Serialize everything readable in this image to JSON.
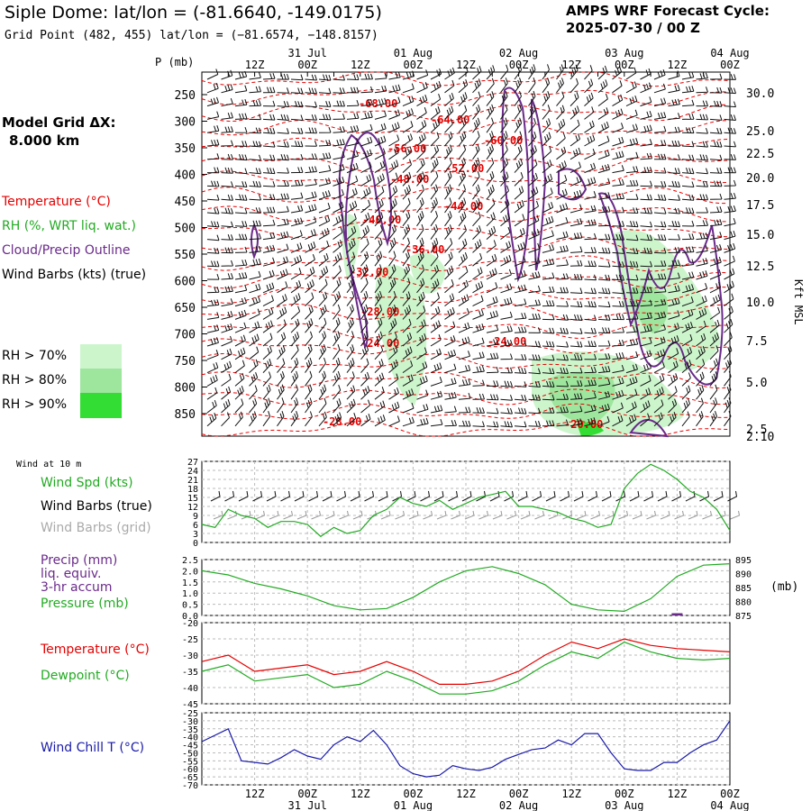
{
  "header": {
    "title": "Siple Dome:  lat/lon = (-81.6640, -149.0175)",
    "subtitle": "Grid Point (482, 455) lat/lon = (−81.6574, −148.8157)",
    "cycle_line1": "AMPS WRF Forecast Cycle:",
    "cycle_line2": "2025-07-30 / 00  Z"
  },
  "left_legend": {
    "grid_dx_label": "Model Grid ΔX:",
    "grid_dx_value": "8.000 km",
    "temperature": "Temperature (°C)",
    "rh": "RH (%, WRT liq. wat.)",
    "cloud": "Cloud/Precip Outline",
    "wind_barbs": "Wind Barbs (kts) (true)",
    "rh70": "RH > 70%",
    "rh80": "RH > 80%",
    "rh90": "RH > 90%",
    "wind10m": "Wind at 10 m",
    "wind_spd": "Wind Spd (kts)",
    "wind_barbs_true": "Wind Barbs (true)",
    "wind_barbs_grid": "Wind Barbs (grid)",
    "precip": "Precip (mm)",
    "liq": "liq. equiv.",
    "accum": "3-hr accum",
    "pressure": "Pressure (mb)",
    "temp2": "Temperature (°C)",
    "dewpoint": "Dewpoint (°C)",
    "windchill": "Wind Chill T (°C)"
  },
  "colors": {
    "temperature": "#e60000",
    "rh": "#22aa22",
    "cloud": "#6a2a8a",
    "wind": "#000000",
    "wind_grid": "#999999",
    "windchill": "#1a1aaa",
    "rh70": "#ccf5cc",
    "rh80": "#9ee59e",
    "rh90": "#33dd33"
  },
  "time_axis": {
    "top_labels": [
      "12Z",
      "00Z",
      "12Z",
      "00Z",
      "12Z",
      "00Z",
      "12Z",
      "00Z",
      "12Z",
      "00Z"
    ],
    "top_dates": [
      "31 Jul",
      "01 Aug",
      "02 Aug",
      "03 Aug",
      "04 Aug"
    ],
    "bottom_labels": [
      "12Z",
      "00Z",
      "12Z",
      "00Z",
      "12Z",
      "00Z",
      "12Z",
      "00Z",
      "12Z",
      "00Z"
    ],
    "bottom_dates": [
      "31 Jul",
      "01 Aug",
      "02 Aug",
      "03 Aug",
      "04 Aug"
    ]
  },
  "chart_data": [
    {
      "type": "line",
      "title": "",
      "ylabel": "P (mb)",
      "y2label": "Kft MSL",
      "y_ticks": [
        250,
        300,
        350,
        400,
        450,
        500,
        550,
        600,
        650,
        700,
        750,
        800,
        850
      ],
      "y2_ticks": [
        "30.0",
        "25.0",
        "22.5",
        "20.0",
        "17.5",
        "15.0",
        "12.5",
        "10.0",
        "7.5",
        "5.0",
        "2.5",
        "2.10"
      ],
      "contour_labels": [
        "-68.00",
        "-64.00",
        "-56.00",
        "-60.00",
        "-52.00",
        "-48.00",
        "-44.00",
        "-40.00",
        "-36.00",
        "-32.00",
        "-28.00",
        "-24.00",
        "-24.00",
        "-28.00",
        "-20.00"
      ]
    },
    {
      "type": "line",
      "title": "",
      "ylabel": "Wind Spd (kts)",
      "ylim": [
        0,
        27
      ],
      "y_ticks": [
        0,
        3,
        6,
        9,
        12,
        15,
        18,
        21,
        24,
        27
      ],
      "x_hours": [
        0,
        3,
        6,
        9,
        12,
        15,
        18,
        21,
        24,
        27,
        30,
        33,
        36,
        39,
        42,
        45,
        48,
        51,
        54,
        57,
        60,
        63,
        66,
        69,
        72,
        75,
        78,
        81,
        84,
        87,
        90,
        93,
        96,
        99,
        102,
        105,
        108,
        111,
        114,
        117,
        120
      ],
      "series": [
        {
          "values": [
            6,
            5,
            11,
            9,
            8,
            5,
            7,
            7,
            6,
            2,
            5,
            3,
            4,
            9,
            11,
            15,
            13,
            12,
            14,
            11,
            13,
            15,
            16,
            17,
            12,
            12,
            11,
            10,
            8,
            7,
            5,
            6,
            18,
            23,
            26,
            24,
            21,
            17,
            15,
            11,
            4
          ]
        }
      ]
    },
    {
      "type": "line",
      "title": "",
      "ylabel": "Precip (mm)",
      "ylim": [
        0,
        2.5
      ],
      "y_ticks": [
        "0.0",
        "0.5",
        "1.0",
        "1.5",
        "2.0",
        "2.5"
      ],
      "y2_ticks": [
        "875",
        "880",
        "885",
        "890",
        "895"
      ],
      "y2label": "(mb)",
      "y2lim": [
        875,
        895
      ],
      "x_hours": [
        0,
        6,
        12,
        18,
        24,
        30,
        36,
        42,
        48,
        54,
        60,
        66,
        72,
        78,
        84,
        90,
        96,
        102,
        108,
        114,
        120
      ],
      "series": [
        {
          "name": "Pressure (mb)",
          "values": [
            891,
            889.5,
            886.5,
            884.5,
            882,
            878.5,
            877,
            877.5,
            881.5,
            887,
            891,
            892.5,
            890,
            886,
            879,
            877,
            876.5,
            881,
            889,
            893,
            893.5
          ]
        },
        {
          "name": "Precip (mm)",
          "values": [
            0,
            0,
            0,
            0,
            0,
            0,
            0,
            0,
            0,
            0,
            0,
            0,
            0,
            0,
            0,
            0,
            0,
            0,
            0.1,
            0,
            0
          ]
        }
      ]
    },
    {
      "type": "line",
      "title": "",
      "ylabel": "Temperature (°C)",
      "ylim": [
        -45,
        -20
      ],
      "y_ticks": [
        -45,
        -40,
        -35,
        -30,
        -25,
        -20
      ],
      "x_hours": [
        0,
        6,
        12,
        18,
        24,
        30,
        36,
        42,
        48,
        54,
        60,
        66,
        72,
        78,
        84,
        90,
        96,
        102,
        108,
        114,
        120
      ],
      "series": [
        {
          "name": "Temperature (°C)",
          "values": [
            -32,
            -30,
            -35,
            -34,
            -33,
            -36,
            -35,
            -32,
            -35,
            -39,
            -39,
            -38,
            -35,
            -30,
            -26,
            -28,
            -25,
            -27,
            -28,
            -28.5,
            -29
          ]
        },
        {
          "name": "Dewpoint (°C)",
          "values": [
            -35,
            -33,
            -38,
            -37,
            -36,
            -40,
            -39,
            -35,
            -38,
            -42,
            -42,
            -41,
            -38,
            -33,
            -29,
            -31,
            -26,
            -29,
            -31,
            -31.5,
            -31
          ]
        }
      ]
    },
    {
      "type": "line",
      "title": "",
      "ylabel": "Wind Chill T (°C)",
      "ylim": [
        -70,
        -25
      ],
      "y_ticks": [
        -70,
        -65,
        -60,
        -55,
        -50,
        -45,
        -40,
        -35,
        -30,
        -25
      ],
      "x_hours": [
        0,
        6,
        9,
        15,
        18,
        21,
        24,
        27,
        30,
        33,
        36,
        39,
        42,
        45,
        48,
        51,
        54,
        57,
        60,
        63,
        66,
        69,
        72,
        75,
        78,
        81,
        84,
        87,
        90,
        93,
        96,
        99,
        102,
        105,
        108,
        111,
        114,
        117,
        120
      ],
      "series": [
        {
          "name": "Wind Chill T (°C)",
          "values": [
            -43,
            -35,
            -55,
            -57,
            -53,
            -48,
            -52,
            -54,
            -45,
            -40,
            -43,
            -36,
            -45,
            -58,
            -63,
            -65,
            -64,
            -58,
            -60,
            -61,
            -59,
            -54,
            -51,
            -48,
            -47,
            -42,
            -45,
            -38,
            -38,
            -50,
            -60,
            -61,
            -61,
            -56,
            -56,
            -50,
            -45,
            -42,
            -30
          ]
        }
      ]
    }
  ]
}
